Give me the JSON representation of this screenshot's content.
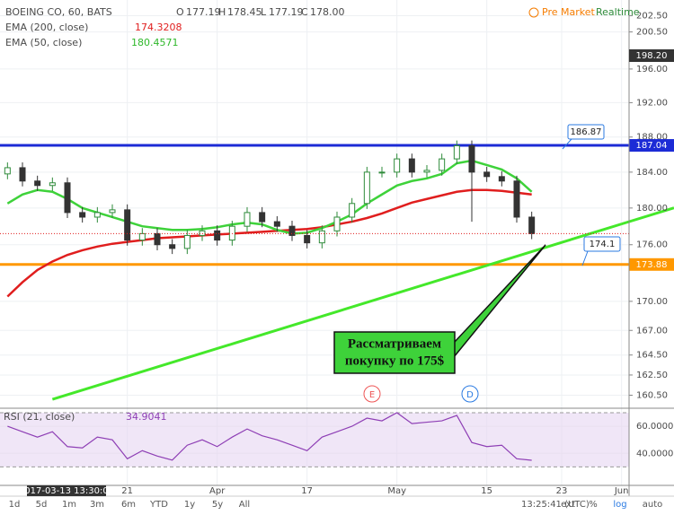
{
  "header": {
    "symbol": "BOEING CO, 60, BATS",
    "ohlc": [
      "O",
      "177.19",
      "H",
      "178.45",
      "L",
      "177.19",
      "C",
      "178.00"
    ],
    "pre_market": "Pre Market",
    "realtime": "Realtime"
  },
  "annotation": [
    "Рассматриваем",
    "покупку по 175$"
  ],
  "events": [
    "E",
    "D"
  ],
  "crosshair": {
    "price": {
      "value": 198.2,
      "label": "198.20"
    },
    "time": "2017-03-13 13:30:00"
  },
  "toolbar": {
    "ranges": [
      "1d",
      "5d",
      "1m",
      "3m",
      "6m",
      "YTD",
      "1y",
      "5y",
      "All"
    ],
    "time": "13:25:41 (UTC)",
    "options": [
      "ext",
      "%",
      "log",
      "auto"
    ]
  },
  "chart_data": [
    {
      "type": "candlestick",
      "log_scale": true,
      "categories": [
        null,
        null,
        null,
        null,
        null,
        null,
        null,
        null,
        "21",
        null,
        null,
        null,
        null,
        null,
        "Apr",
        null,
        null,
        null,
        null,
        null,
        "17",
        null,
        null,
        null,
        null,
        null,
        "May",
        null,
        null,
        null,
        null,
        null,
        "15",
        null,
        null,
        null,
        null,
        "23",
        null,
        null,
        null,
        "Jun"
      ],
      "open": [
        183.8,
        184.5,
        183,
        182.5,
        182.8,
        179.5,
        179,
        179.5,
        179.8,
        176.5,
        177.2,
        176,
        175.6,
        177,
        177.5,
        176.5,
        178,
        179.5,
        178.5,
        178,
        177,
        176.2,
        177.5,
        179,
        180.5,
        184,
        184,
        185.5,
        184,
        184.2,
        185.5,
        187,
        184,
        183.5,
        183,
        179,
        null,
        null,
        null,
        null,
        null,
        null
      ],
      "high": [
        185.1,
        185.1,
        183.6,
        183.4,
        183.4,
        180.1,
        180.1,
        180.4,
        180.4,
        177.8,
        177.8,
        176.6,
        177.6,
        178.1,
        178.1,
        178.6,
        180.1,
        180.1,
        179.1,
        178.6,
        177.6,
        178.1,
        179.6,
        181.1,
        184.6,
        184.6,
        186.1,
        186.1,
        184.8,
        186.1,
        187.6,
        187.6,
        184.6,
        184.1,
        183.6,
        179.6,
        null,
        null,
        null,
        null,
        null,
        null
      ],
      "low": [
        183.2,
        182.4,
        181.9,
        181.9,
        178.9,
        178.4,
        178.4,
        178.9,
        175.9,
        175.9,
        175.4,
        175.0,
        175.0,
        176.4,
        175.9,
        175.9,
        177.4,
        177.9,
        177.4,
        176.4,
        175.6,
        175.6,
        176.9,
        178.4,
        179.9,
        183.4,
        183.4,
        183.4,
        183.4,
        183.6,
        184.9,
        178.5,
        182.9,
        182.4,
        178.4,
        176.6,
        null,
        null,
        null,
        null,
        null,
        null
      ],
      "close": [
        184.5,
        183,
        182.5,
        182.8,
        179.5,
        179,
        179.5,
        179.8,
        176.5,
        177.2,
        176,
        175.6,
        177,
        177.5,
        176.5,
        178,
        179.5,
        178.5,
        178,
        177,
        176.2,
        177.5,
        179,
        180.5,
        184,
        184,
        185.5,
        184,
        184.2,
        185.5,
        187,
        184,
        183.5,
        183,
        179,
        177.2,
        null,
        null,
        null,
        null,
        null,
        null
      ],
      "up_color": "#2e8b3a",
      "down_color": "#333333",
      "series": [
        {
          "name": "EMA (200, close)",
          "color": "#e01e1e",
          "cursor_value": 174.3208,
          "values": [
            170.5,
            172,
            173.3,
            174.2,
            174.9,
            175.4,
            175.8,
            176.1,
            176.3,
            176.5,
            176.7,
            176.8,
            176.9,
            177,
            177.1,
            177.2,
            177.3,
            177.4,
            177.5,
            177.6,
            177.7,
            177.9,
            178.2,
            178.5,
            178.9,
            179.4,
            180,
            180.6,
            181,
            181.4,
            181.8,
            182,
            182,
            181.9,
            181.7,
            181.5,
            null,
            null,
            null,
            null,
            null,
            null
          ]
        },
        {
          "name": "EMA (50, close)",
          "color": "#3ed23a",
          "cursor_value": 180.4571,
          "values": [
            180.5,
            181.5,
            182,
            181.8,
            181,
            180,
            179.5,
            179,
            178.5,
            178,
            177.8,
            177.6,
            177.6,
            177.7,
            177.9,
            178.2,
            178.4,
            178.2,
            177.6,
            177.2,
            177.3,
            177.8,
            178.5,
            179.3,
            180.5,
            181.5,
            182.5,
            183,
            183.3,
            183.8,
            185,
            185.3,
            184.8,
            184.3,
            183.3,
            181.8,
            null,
            null,
            null,
            null,
            null,
            null
          ]
        }
      ],
      "trendline": {
        "color": "#44e82a",
        "values": [
          null,
          null,
          null,
          160.1,
          null,
          null,
          null,
          null,
          null,
          null,
          null,
          null,
          null,
          null,
          null,
          null,
          null,
          null,
          null,
          null,
          null,
          null,
          null,
          null,
          null,
          null,
          null,
          null,
          null,
          null,
          null,
          null,
          null,
          null,
          null,
          null,
          null,
          null,
          null,
          null,
          null,
          178.25
        ]
      },
      "hlines": [
        {
          "value": 187.04,
          "color": "#1c2bd6"
        },
        {
          "value": 173.88,
          "color": "#ff9800"
        }
      ],
      "callouts": [
        186.87,
        174.1
      ],
      "ylim": [
        159.4,
        203.9
      ],
      "yticks": [
        {
          "value": 202.5,
          "label": "202.50"
        },
        {
          "value": 200.5,
          "label": "200.50"
        },
        {
          "value": 196,
          "label": "196.00"
        },
        {
          "value": 192,
          "label": "192.00"
        },
        {
          "value": 188,
          "label": "188.00"
        },
        {
          "value": 184,
          "label": "184.00"
        },
        {
          "value": 180,
          "label": "180.00"
        },
        {
          "value": 176,
          "label": "176.00"
        },
        {
          "value": 170,
          "label": "170.00"
        },
        {
          "value": 167,
          "label": "167.00"
        },
        {
          "value": 164.5,
          "label": "164.50"
        },
        {
          "value": 162.5,
          "label": "162.50"
        },
        {
          "value": 160.5,
          "label": "160.50"
        }
      ],
      "grid": true
    },
    {
      "type": "line",
      "name": "RSI (21, close)",
      "color": "#8e3fb5",
      "values": [
        60,
        56,
        52,
        56,
        45,
        44,
        52,
        50,
        36,
        42,
        38,
        35,
        46,
        50,
        45,
        52,
        58,
        53,
        50,
        46,
        42,
        52,
        56,
        60,
        66,
        64,
        70,
        62,
        63,
        64,
        68,
        48,
        45,
        46,
        36,
        34.9041
      ],
      "band": [
        30,
        70
      ],
      "band_color": "#e6d5f2",
      "ylim": [
        17,
        72
      ],
      "yticks": [
        {
          "value": 60,
          "label": "60.0000"
        },
        {
          "value": 40,
          "label": "40.0000"
        }
      ],
      "grid": true
    }
  ]
}
